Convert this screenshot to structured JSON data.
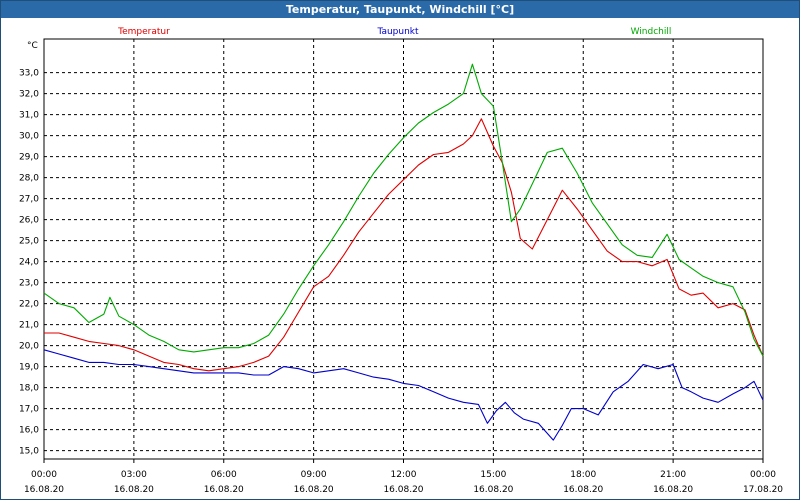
{
  "window": {
    "title": "Temperatur, Taupunkt, Windchill [°C]"
  },
  "chart_data": {
    "type": "line",
    "title": "Temperatur, Taupunkt, Windchill [°C]",
    "ylabel": "°C",
    "xlabel": "",
    "ylim": [
      14.6,
      34.6
    ],
    "yticks": [
      15,
      16,
      17,
      18,
      19,
      20,
      21,
      22,
      23,
      24,
      25,
      26,
      27,
      28,
      29,
      30,
      31,
      32,
      33
    ],
    "ytick_labels": [
      "15,0",
      "16,0",
      "17,0",
      "18,0",
      "19,0",
      "20,0",
      "21,0",
      "22,0",
      "23,0",
      "24,0",
      "25,0",
      "26,0",
      "27,0",
      "28,0",
      "29,0",
      "30,0",
      "31,0",
      "32,0",
      "33,0"
    ],
    "xlim": [
      0,
      24
    ],
    "xticks": [
      0,
      3,
      6,
      9,
      12,
      15,
      18,
      21,
      24
    ],
    "xtick_labels": [
      [
        "00:00",
        "16.08.20"
      ],
      [
        "03:00",
        "16.08.20"
      ],
      [
        "06:00",
        "16.08.20"
      ],
      [
        "09:00",
        "16.08.20"
      ],
      [
        "12:00",
        "16.08.20"
      ],
      [
        "15:00",
        "16.08.20"
      ],
      [
        "18:00",
        "16.08.20"
      ],
      [
        "21:00",
        "16.08.20"
      ],
      [
        "00:00",
        "17.08.20"
      ]
    ],
    "grid": true,
    "legend_position": "top",
    "series": [
      {
        "name": "Temperatur",
        "color": "#e00000",
        "x": [
          0,
          0.5,
          1,
          1.5,
          2,
          2.5,
          3,
          3.5,
          4,
          4.5,
          5,
          5.5,
          6,
          6.5,
          7,
          7.5,
          8,
          8.5,
          9,
          9.5,
          10,
          10.5,
          11,
          11.5,
          12,
          12.5,
          13,
          13.5,
          14,
          14.3,
          14.6,
          15,
          15.3,
          15.6,
          15.9,
          16.3,
          16.8,
          17.3,
          17.8,
          18.3,
          18.8,
          19.3,
          19.8,
          20.3,
          20.8,
          21.2,
          21.6,
          22,
          22.5,
          23,
          23.4,
          23.7,
          24
        ],
        "y": [
          20.6,
          20.6,
          20.4,
          20.2,
          20.1,
          20,
          19.8,
          19.5,
          19.2,
          19.1,
          18.9,
          18.8,
          18.9,
          19,
          19.2,
          19.5,
          20.4,
          21.6,
          22.8,
          23.3,
          24.3,
          25.4,
          26.3,
          27.2,
          27.9,
          28.6,
          29.1,
          29.2,
          29.6,
          30,
          30.8,
          29.5,
          28.7,
          27.3,
          25.1,
          24.6,
          26,
          27.4,
          26.5,
          25.5,
          24.5,
          24,
          24,
          23.8,
          24.1,
          22.7,
          22.4,
          22.5,
          21.8,
          22,
          21.7,
          20.5,
          19.5
        ]
      },
      {
        "name": "Taupunkt",
        "color": "#0000cc",
        "x": [
          0,
          0.5,
          1,
          1.5,
          2,
          2.5,
          3,
          3.5,
          4,
          4.5,
          5,
          5.5,
          6,
          6.5,
          7,
          7.5,
          8,
          8.5,
          9,
          9.5,
          10,
          10.5,
          11,
          11.5,
          12,
          12.5,
          13,
          13.5,
          14,
          14.5,
          14.8,
          15.1,
          15.4,
          15.7,
          16,
          16.5,
          17,
          17.3,
          17.6,
          18,
          18.5,
          19,
          19.5,
          20,
          20.5,
          21,
          21.3,
          21.6,
          22,
          22.5,
          23,
          23.4,
          23.7,
          24
        ],
        "y": [
          19.8,
          19.6,
          19.4,
          19.2,
          19.2,
          19.1,
          19.1,
          19,
          18.9,
          18.8,
          18.7,
          18.7,
          18.7,
          18.7,
          18.6,
          18.6,
          19,
          18.9,
          18.7,
          18.8,
          18.9,
          18.7,
          18.5,
          18.4,
          18.2,
          18.1,
          17.8,
          17.5,
          17.3,
          17.2,
          16.3,
          16.9,
          17.3,
          16.8,
          16.5,
          16.3,
          15.5,
          16.2,
          17,
          17,
          16.7,
          17.8,
          18.3,
          19.1,
          18.9,
          19.1,
          18,
          17.8,
          17.5,
          17.3,
          17.7,
          18,
          18.3,
          17.4
        ]
      },
      {
        "name": "Windchill",
        "color": "#00aa00",
        "x": [
          0,
          0.5,
          1,
          1.5,
          2,
          2.2,
          2.5,
          3,
          3.5,
          4,
          4.5,
          5,
          5.5,
          6,
          6.5,
          7,
          7.5,
          8,
          8.5,
          9,
          9.5,
          10,
          10.5,
          11,
          11.5,
          12,
          12.5,
          13,
          13.5,
          14,
          14.3,
          14.6,
          15,
          15.3,
          15.6,
          15.9,
          16.3,
          16.8,
          17.3,
          17.8,
          18.3,
          18.8,
          19.3,
          19.8,
          20.3,
          20.8,
          21.2,
          21.6,
          22,
          22.5,
          23,
          23.4,
          23.7,
          24
        ],
        "y": [
          22.5,
          22,
          21.8,
          21.1,
          21.5,
          22.3,
          21.4,
          21,
          20.5,
          20.2,
          19.8,
          19.7,
          19.8,
          19.9,
          19.9,
          20.1,
          20.5,
          21.5,
          22.7,
          23.8,
          24.8,
          25.9,
          27.1,
          28.2,
          29.1,
          29.9,
          30.6,
          31.1,
          31.5,
          32,
          33.4,
          32,
          31.4,
          28.7,
          25.9,
          26.5,
          27.7,
          29.2,
          29.4,
          28.2,
          26.8,
          25.8,
          24.8,
          24.3,
          24.2,
          25.3,
          24.1,
          23.7,
          23.3,
          23,
          22.8,
          21.6,
          20.3,
          19.5
        ]
      }
    ]
  }
}
